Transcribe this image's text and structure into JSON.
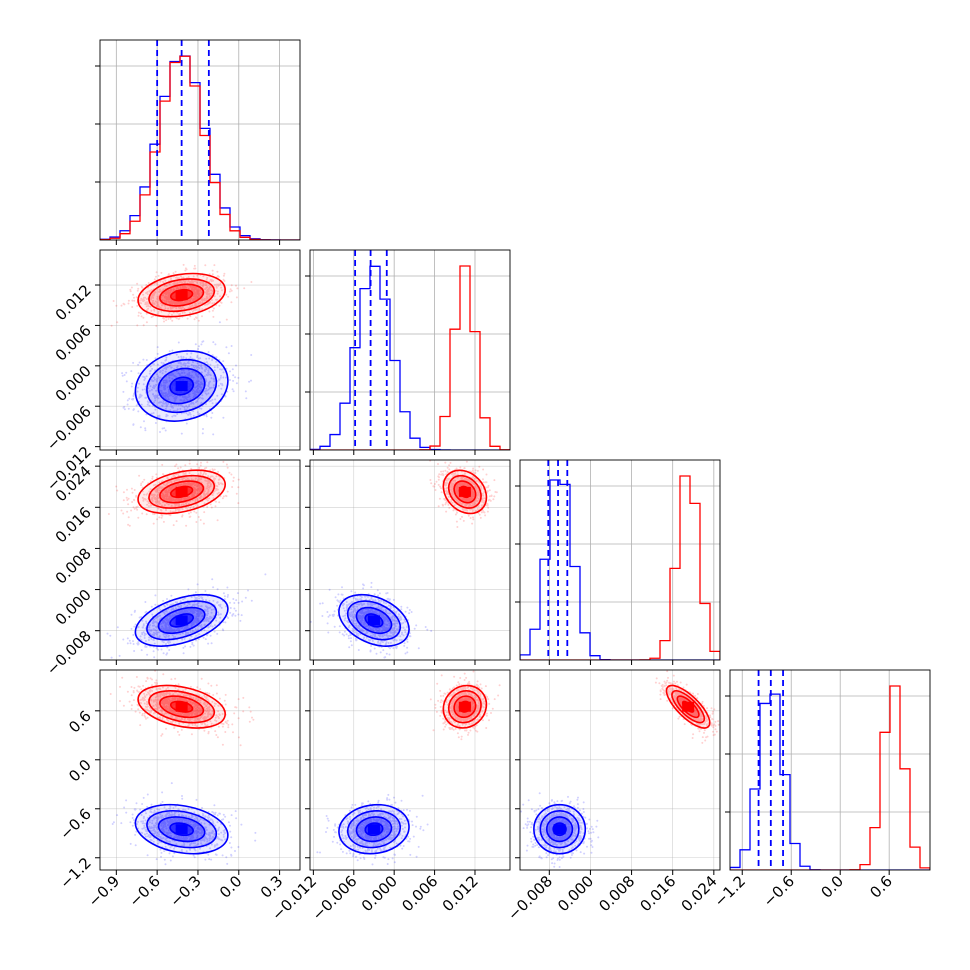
{
  "chart_data": {
    "type": "corner",
    "title": "",
    "grid": true,
    "colors": {
      "series_a": "#ff0000",
      "series_b": "#0000ff",
      "grid": "#b0b0b0",
      "frame": "#000000"
    },
    "series": [
      {
        "color": "#0000ff",
        "means": [
          -0.42,
          -0.003,
          -0.006,
          -0.85
        ],
        "sds": [
          0.17,
          0.0026,
          0.0025,
          0.15
        ]
      },
      {
        "color": "#ff0000",
        "means": [
          -0.42,
          0.0105,
          0.019,
          0.65
        ],
        "sds": [
          0.16,
          0.0016,
          0.0021,
          0.13
        ]
      }
    ],
    "correlations": [
      {
        "i": 1,
        "j": 0,
        "series_b": 0.15,
        "series_a": 0.25
      },
      {
        "i": 2,
        "j": 0,
        "series_b": 0.45,
        "series_a": 0.35
      },
      {
        "i": 2,
        "j": 1,
        "series_b": -0.35,
        "series_a": -0.25
      },
      {
        "i": 3,
        "j": 0,
        "series_b": -0.25,
        "series_a": -0.35
      },
      {
        "i": 3,
        "j": 1,
        "series_b": 0.1,
        "series_a": 0.1
      },
      {
        "i": 3,
        "j": 2,
        "series_b": 0.0,
        "series_a": -0.75
      }
    ],
    "quantile_lines": [
      [
        -0.6,
        -0.42,
        -0.22
      ],
      [
        -0.0058,
        -0.0035,
        -0.0011
      ],
      [
        -0.0082,
        -0.0063,
        -0.0045
      ],
      [
        -1.0,
        -0.85,
        -0.7
      ]
    ],
    "params": [
      {
        "range": [
          -1.02,
          0.45
        ],
        "ticks": [
          -0.9,
          -0.6,
          -0.3,
          0.0,
          0.3
        ],
        "tick_labels": [
          "−0.9",
          "−0.6",
          "−0.3",
          "0.0",
          "0.3"
        ]
      },
      {
        "range": [
          -0.0125,
          0.0172
        ],
        "ticks": [
          -0.012,
          -0.006,
          0.0,
          0.006,
          0.012
        ],
        "tick_labels": [
          "−0.012",
          "−0.006",
          "0.000",
          "0.006",
          "0.012"
        ]
      },
      {
        "range": [
          -0.0137,
          0.0252
        ],
        "ticks": [
          -0.008,
          0.0,
          0.008,
          0.016,
          0.024
        ],
        "tick_labels": [
          "−0.008",
          "0.000",
          "0.008",
          "0.016",
          "0.024"
        ]
      },
      {
        "range": [
          -1.35,
          1.1
        ],
        "ticks": [
          -1.2,
          -0.6,
          0.0,
          0.6
        ],
        "tick_labels": [
          "−1.2",
          "−0.6",
          "0.0",
          "0.6"
        ]
      }
    ],
    "xlabel": "",
    "ylabel": ""
  }
}
